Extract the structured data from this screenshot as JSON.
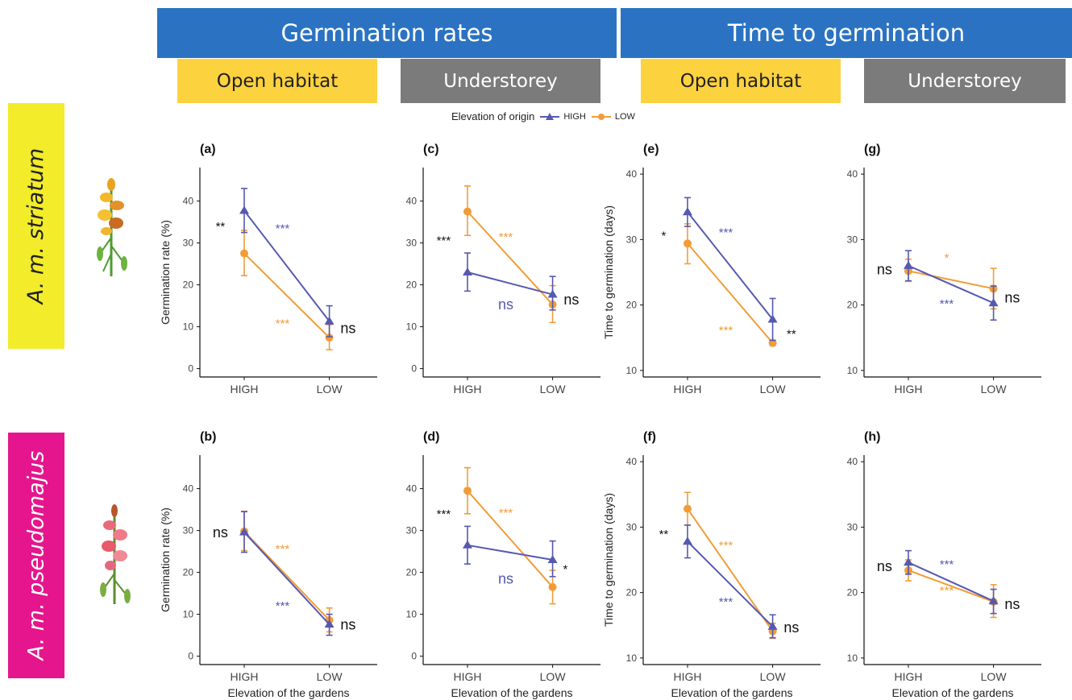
{
  "headers": {
    "germination_rates": "Germination rates",
    "time_to_germination": "Time to germination",
    "open_habitat_1": "Open habitat",
    "understorey_1": "Understorey",
    "open_habitat_2": "Open habitat",
    "understorey_2": "Understorey"
  },
  "rows": {
    "row1": "A. m. striatum",
    "row2": "A. m. pseudomajus"
  },
  "legend": {
    "title": "Elevation of origin",
    "high": "HIGH",
    "low": "LOW"
  },
  "colors": {
    "high": "#5559b0",
    "low": "#f29c38",
    "text": "#111111",
    "blue_banner": "#2b73c2",
    "yellow": "#fdd23f",
    "grey": "#7b7b7b",
    "row1": "#f2ec2a",
    "row2": "#e5168d"
  },
  "icons": {
    "row1": "yellow-snapdragon-flower-icon",
    "row2": "pink-snapdragon-flower-icon"
  },
  "chart_data": [
    {
      "id": "a",
      "label": "(a)",
      "type": "line",
      "categories": [
        "HIGH",
        "LOW"
      ],
      "ylabel": "Germination rate (%)",
      "xlabel": "",
      "ylim": [
        -2,
        48
      ],
      "yticks": [
        0,
        10,
        20,
        30,
        40
      ],
      "series": [
        {
          "name": "HIGH",
          "values": [
            37.7,
            11.3
          ],
          "lower": [
            32.5,
            7.6
          ],
          "upper": [
            43.0,
            15.0
          ]
        },
        {
          "name": "LOW",
          "values": [
            27.5,
            7.4
          ],
          "lower": [
            22.2,
            4.5
          ],
          "upper": [
            33.0,
            10.5
          ]
        }
      ],
      "annotations": [
        {
          "text": "**",
          "color": "black",
          "x": 0.72,
          "y": 33.0,
          "size": "small"
        },
        {
          "text": "***",
          "color": "high",
          "x": 1.45,
          "y": 32.5,
          "size": "small"
        },
        {
          "text": "***",
          "color": "low",
          "x": 1.45,
          "y": 9.8,
          "size": "small"
        },
        {
          "text": "ns",
          "color": "black",
          "x": 2.22,
          "y": 8.5,
          "size": "big"
        }
      ]
    },
    {
      "id": "b",
      "label": "(b)",
      "type": "line",
      "categories": [
        "HIGH",
        "LOW"
      ],
      "ylabel": "Germination rate (%)",
      "xlabel": "Elevation of the gardens",
      "ylim": [
        -2,
        48
      ],
      "yticks": [
        0,
        10,
        20,
        30,
        40
      ],
      "series": [
        {
          "name": "HIGH",
          "values": [
            29.6,
            7.6
          ],
          "lower": [
            24.8,
            5.0
          ],
          "upper": [
            34.5,
            10.0
          ]
        },
        {
          "name": "LOW",
          "values": [
            29.8,
            8.6
          ],
          "lower": [
            25.2,
            5.8
          ],
          "upper": [
            34.6,
            11.5
          ]
        }
      ],
      "annotations": [
        {
          "text": "ns",
          "color": "black",
          "x": 0.72,
          "y": 28.4,
          "size": "big"
        },
        {
          "text": "***",
          "color": "low",
          "x": 1.45,
          "y": 24.6,
          "size": "small"
        },
        {
          "text": "***",
          "color": "high",
          "x": 1.45,
          "y": 11.1,
          "size": "small"
        },
        {
          "text": "ns",
          "color": "black",
          "x": 2.22,
          "y": 6.4,
          "size": "big"
        }
      ]
    },
    {
      "id": "c",
      "label": "(c)",
      "type": "line",
      "categories": [
        "HIGH",
        "LOW"
      ],
      "ylabel": "",
      "xlabel": "",
      "ylim": [
        -2,
        48
      ],
      "yticks": [
        0,
        10,
        20,
        30,
        40
      ],
      "series": [
        {
          "name": "HIGH",
          "values": [
            23.0,
            17.7
          ],
          "lower": [
            18.5,
            14.0
          ],
          "upper": [
            27.6,
            22.0
          ]
        },
        {
          "name": "LOW",
          "values": [
            37.5,
            15.3
          ],
          "lower": [
            31.8,
            11.0
          ],
          "upper": [
            43.6,
            19.8
          ]
        }
      ],
      "annotations": [
        {
          "text": "***",
          "color": "black",
          "x": 0.72,
          "y": 29.6,
          "size": "small"
        },
        {
          "text": "***",
          "color": "low",
          "x": 1.45,
          "y": 30.5,
          "size": "small"
        },
        {
          "text": "ns",
          "color": "high",
          "x": 1.45,
          "y": 14.2,
          "size": "big"
        },
        {
          "text": "ns",
          "color": "black",
          "x": 2.22,
          "y": 15.3,
          "size": "big"
        }
      ]
    },
    {
      "id": "d",
      "label": "(d)",
      "type": "line",
      "categories": [
        "HIGH",
        "LOW"
      ],
      "ylabel": "",
      "xlabel": "Elevation of the gardens",
      "ylim": [
        -2,
        48
      ],
      "yticks": [
        0,
        10,
        20,
        30,
        40
      ],
      "series": [
        {
          "name": "HIGH",
          "values": [
            26.5,
            23.0
          ],
          "lower": [
            22.0,
            19.0
          ],
          "upper": [
            31.0,
            27.5
          ]
        },
        {
          "name": "LOW",
          "values": [
            39.5,
            16.5
          ],
          "lower": [
            34.0,
            12.5
          ],
          "upper": [
            45.0,
            20.5
          ]
        }
      ],
      "annotations": [
        {
          "text": "***",
          "color": "black",
          "x": 0.72,
          "y": 33.0,
          "size": "small"
        },
        {
          "text": "***",
          "color": "low",
          "x": 1.45,
          "y": 33.3,
          "size": "small"
        },
        {
          "text": "ns",
          "color": "high",
          "x": 1.45,
          "y": 17.3,
          "size": "big"
        },
        {
          "text": "*",
          "color": "black",
          "x": 2.15,
          "y": 19.8,
          "size": "small"
        }
      ]
    },
    {
      "id": "e",
      "label": "(e)",
      "type": "line",
      "categories": [
        "HIGH",
        "LOW"
      ],
      "ylabel": "Time to germination (days)",
      "xlabel": "",
      "ylim": [
        9,
        41
      ],
      "yticks": [
        10,
        20,
        30,
        40
      ],
      "series": [
        {
          "name": "HIGH",
          "values": [
            34.2,
            17.8
          ],
          "lower": [
            32.0,
            14.6
          ],
          "upper": [
            36.4,
            21.0
          ]
        },
        {
          "name": "LOW",
          "values": [
            29.4,
            14.2
          ],
          "lower": [
            26.3,
            13.8
          ],
          "upper": [
            32.4,
            14.6
          ]
        }
      ],
      "annotations": [
        {
          "text": "*",
          "color": "black",
          "x": 0.72,
          "y": 30.0,
          "size": "small"
        },
        {
          "text": "***",
          "color": "high",
          "x": 1.45,
          "y": 30.5,
          "size": "small"
        },
        {
          "text": "***",
          "color": "low",
          "x": 1.45,
          "y": 15.5,
          "size": "small"
        },
        {
          "text": "**",
          "color": "black",
          "x": 2.22,
          "y": 15.0,
          "size": "small"
        }
      ]
    },
    {
      "id": "f",
      "label": "(f)",
      "type": "line",
      "categories": [
        "HIGH",
        "LOW"
      ],
      "ylabel": "Time to germination (days)",
      "xlabel": "Elevation of the gardens",
      "ylim": [
        9,
        41
      ],
      "yticks": [
        10,
        20,
        30,
        40
      ],
      "series": [
        {
          "name": "HIGH",
          "values": [
            27.8,
            14.8
          ],
          "lower": [
            25.3,
            13.1
          ],
          "upper": [
            30.3,
            16.6
          ]
        },
        {
          "name": "LOW",
          "values": [
            32.8,
            14.1
          ],
          "lower": [
            30.3,
            13.0
          ],
          "upper": [
            35.3,
            15.3
          ]
        }
      ],
      "annotations": [
        {
          "text": "**",
          "color": "black",
          "x": 0.72,
          "y": 28.3,
          "size": "small"
        },
        {
          "text": "***",
          "color": "low",
          "x": 1.45,
          "y": 26.6,
          "size": "small"
        },
        {
          "text": "***",
          "color": "high",
          "x": 1.45,
          "y": 18.0,
          "size": "small"
        },
        {
          "text": "ns",
          "color": "black",
          "x": 2.22,
          "y": 13.9,
          "size": "big"
        }
      ]
    },
    {
      "id": "g",
      "label": "(g)",
      "type": "line",
      "categories": [
        "HIGH",
        "LOW"
      ],
      "ylabel": "",
      "xlabel": "",
      "ylim": [
        9,
        41
      ],
      "yticks": [
        10,
        20,
        30,
        40
      ],
      "series": [
        {
          "name": "HIGH",
          "values": [
            26.0,
            20.3
          ],
          "lower": [
            23.7,
            17.7
          ],
          "upper": [
            28.3,
            22.9
          ]
        },
        {
          "name": "LOW",
          "values": [
            25.2,
            22.5
          ],
          "lower": [
            23.6,
            19.4
          ],
          "upper": [
            27.0,
            25.6
          ]
        }
      ],
      "annotations": [
        {
          "text": "ns",
          "color": "black",
          "x": 0.72,
          "y": 24.7,
          "size": "big"
        },
        {
          "text": "*",
          "color": "low",
          "x": 1.45,
          "y": 26.6,
          "size": "small"
        },
        {
          "text": "***",
          "color": "high",
          "x": 1.45,
          "y": 19.6,
          "size": "small"
        },
        {
          "text": "ns",
          "color": "black",
          "x": 2.22,
          "y": 20.4,
          "size": "big"
        }
      ]
    },
    {
      "id": "h",
      "label": "(h)",
      "type": "line",
      "categories": [
        "HIGH",
        "LOW"
      ],
      "ylabel": "",
      "xlabel": "Elevation of the gardens",
      "ylim": [
        9,
        41
      ],
      "yticks": [
        10,
        20,
        30,
        40
      ],
      "series": [
        {
          "name": "HIGH",
          "values": [
            24.6,
            18.7
          ],
          "lower": [
            22.8,
            16.8
          ],
          "upper": [
            26.4,
            20.5
          ]
        },
        {
          "name": "LOW",
          "values": [
            23.4,
            18.6
          ],
          "lower": [
            21.8,
            16.2
          ],
          "upper": [
            25.0,
            21.2
          ]
        }
      ],
      "annotations": [
        {
          "text": "ns",
          "color": "black",
          "x": 0.72,
          "y": 23.3,
          "size": "big"
        },
        {
          "text": "***",
          "color": "high",
          "x": 1.45,
          "y": 23.7,
          "size": "small"
        },
        {
          "text": "***",
          "color": "low",
          "x": 1.45,
          "y": 19.7,
          "size": "small"
        },
        {
          "text": "ns",
          "color": "black",
          "x": 2.22,
          "y": 17.5,
          "size": "big"
        }
      ]
    }
  ]
}
